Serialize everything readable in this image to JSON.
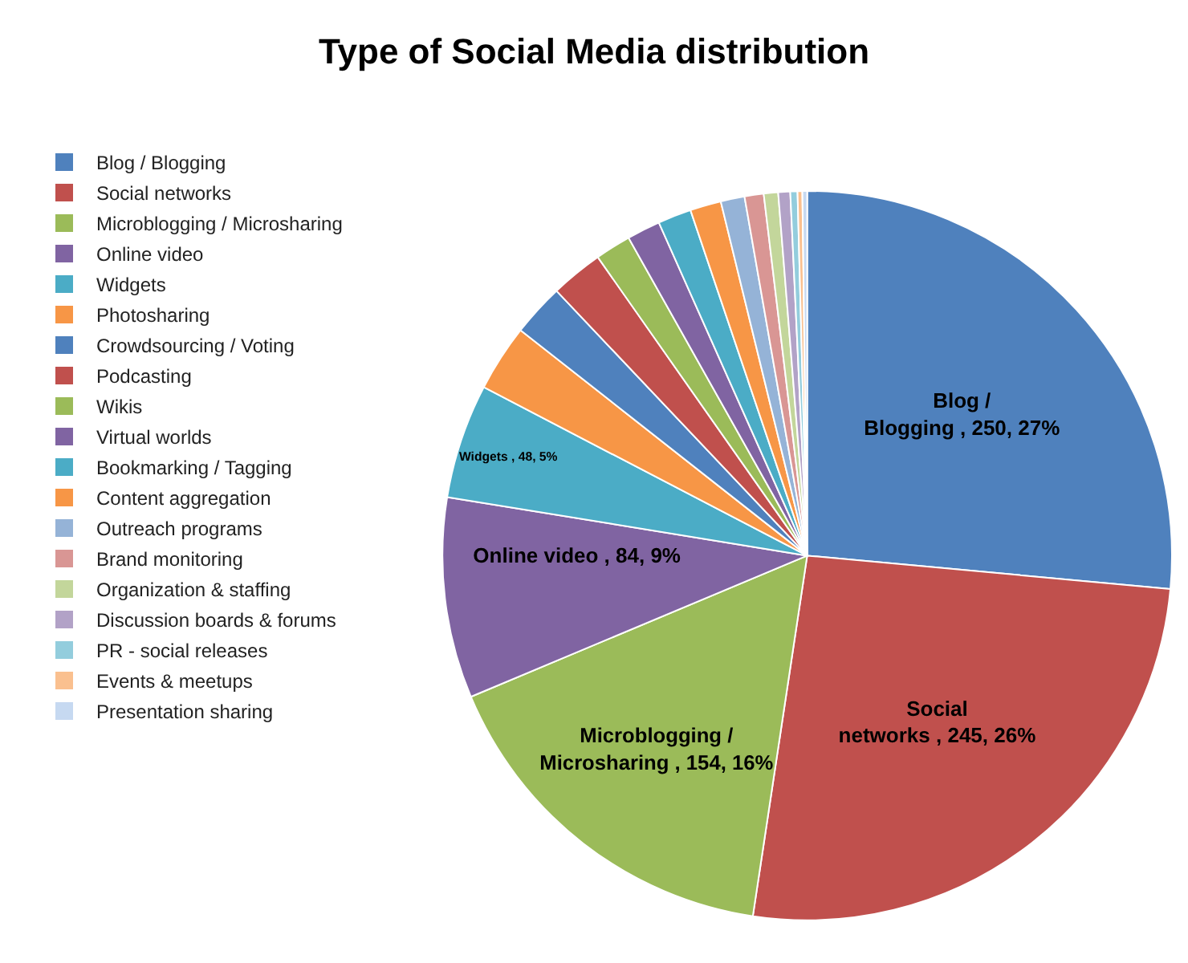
{
  "chart_data": {
    "type": "pie",
    "title": "Type of Social Media distribution",
    "categories": [
      "Blog / Blogging",
      "Social networks",
      "Microblogging / Microsharing",
      "Online video",
      "Widgets",
      "Photosharing",
      "Crowdsourcing / Voting",
      "Podcasting",
      "Wikis",
      "Virtual worlds",
      "Bookmarking / Tagging",
      "Content aggregation",
      "Outreach programs",
      "Brand monitoring",
      "Organization & staffing",
      "Discussion boards & forums",
      "PR - social releases",
      "Events & meetups",
      "Presentation sharing"
    ],
    "values": [
      250,
      245,
      154,
      84,
      48,
      28,
      22,
      22,
      15,
      14,
      14,
      13,
      10,
      8,
      6,
      5,
      3,
      2,
      2
    ],
    "colors": [
      "#4f81bd",
      "#c0504d",
      "#9bbb59",
      "#8064a2",
      "#4bacc6",
      "#f79646",
      "#4f81bd",
      "#c0504d",
      "#9bbb59",
      "#8064a2",
      "#4bacc6",
      "#f79646",
      "#95b3d7",
      "#d99694",
      "#c3d69b",
      "#b2a2c7",
      "#93cddd",
      "#fac08f",
      "#c6d9f1"
    ],
    "value_labels": [
      "Blog /\nBlogging , 250, 27%",
      "Social\nnetworks , 245, 26%",
      "Microblogging /\nMicrosharing , 154, 16%",
      "Online video , 84, 9%",
      "Widgets , 48, 5%",
      null,
      null,
      null,
      null,
      null,
      null,
      null,
      null,
      null,
      null,
      null,
      null,
      null,
      null
    ],
    "legend": "left"
  }
}
